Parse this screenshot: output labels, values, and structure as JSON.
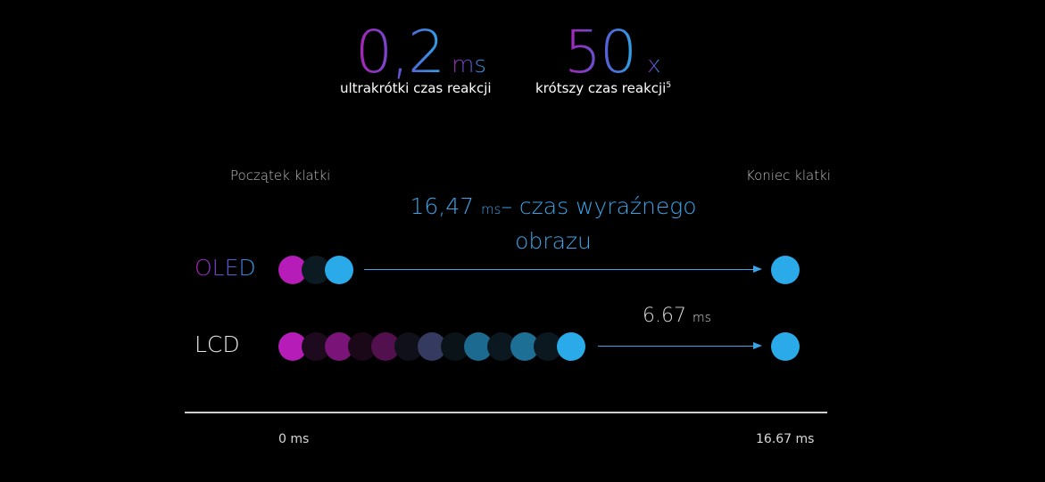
{
  "stats": [
    {
      "value": "0,2",
      "unit": "ms",
      "label": "ultrakrótki czas reakcji",
      "footnote": ""
    },
    {
      "value": "50",
      "unit": "x",
      "label": "krótszy czas reakcji",
      "footnote": "5"
    }
  ],
  "frame": {
    "start_label": "Początek klatki",
    "end_label": "Koniec klatki"
  },
  "clarity": {
    "value": "16,47",
    "unit": "ms",
    "text_line1": "– czas wyraźnego",
    "text_line2": "obrazu"
  },
  "oled": {
    "label": "OLED",
    "dot_colors": [
      "#b51cb8",
      "#0c1a22",
      "#2aaae8"
    ],
    "end_dot_color": "#2aaae8"
  },
  "lcd": {
    "label": "LCD",
    "dot_colors": [
      "#b51cb8",
      "#1e0a1e",
      "#7a1478",
      "#1a0818",
      "#52104e",
      "#10101a",
      "#353a60",
      "#0a1418",
      "#1c6a90",
      "#0c1820",
      "#1e6f96",
      "#0c1820",
      "#2aaae8"
    ],
    "end_dot_color": "#2aaae8",
    "gap_value": "6.67",
    "gap_unit": "ms"
  },
  "timeline": {
    "start": "0 ms",
    "end": "16.67 ms"
  }
}
